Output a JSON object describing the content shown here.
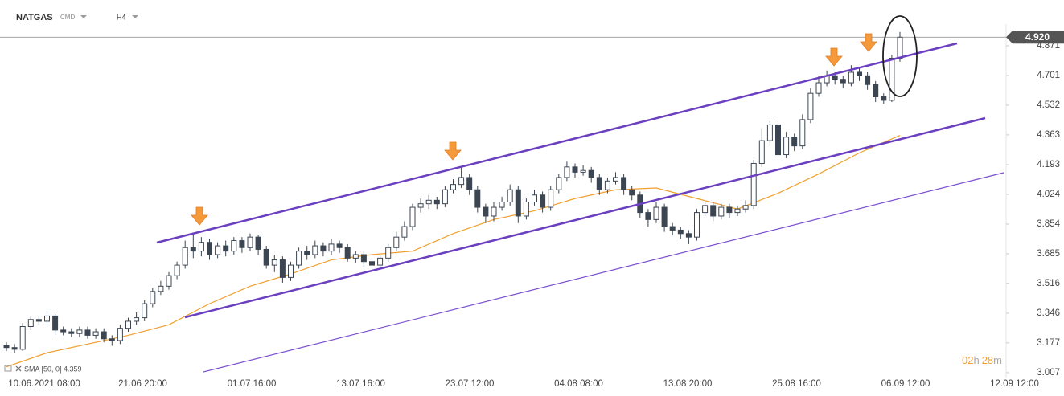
{
  "chart_data": {
    "type": "candlestick",
    "symbol": "NATGAS",
    "symbol_type": "CMD",
    "timeframe": "H4",
    "indicator_label": "SMA [50, 0] 4.359",
    "timer": {
      "hours": "02",
      "hours_unit": "h",
      "minutes": "28",
      "minutes_unit": "m"
    },
    "last_price": {
      "value": 4.92,
      "label": "4.920"
    },
    "up_color": "#ffffff",
    "down_color": "#3c4652",
    "sma_color": "#f0a030",
    "x_labels": [
      "10.06.2021 08:00",
      "21.06 20:00",
      "01.07 16:00",
      "13.07 16:00",
      "23.07 12:00",
      "04.08 08:00",
      "13.08 20:00",
      "25.08 16:00",
      "06.09 12:00",
      "12.09 12:00"
    ],
    "ylim": [
      2.915,
      4.958
    ],
    "yticks": [
      3.007,
      3.177,
      3.346,
      3.516,
      3.685,
      3.854,
      4.024,
      4.193,
      4.363,
      4.532,
      4.701,
      4.871
    ],
    "open": [
      3.16,
      3.15,
      3.14,
      3.27,
      3.31,
      3.3,
      3.33,
      3.25,
      3.24,
      3.23,
      3.25,
      3.22,
      3.24,
      3.2,
      3.19,
      3.26,
      3.3,
      3.32,
      3.4,
      3.47,
      3.5,
      3.56,
      3.62,
      3.72,
      3.7,
      3.75,
      3.68,
      3.73,
      3.7,
      3.76,
      3.72,
      3.78,
      3.71,
      3.62,
      3.65,
      3.55,
      3.62,
      3.7,
      3.68,
      3.73,
      3.7,
      3.74,
      3.72,
      3.66,
      3.68,
      3.64,
      3.62,
      3.66,
      3.72,
      3.78,
      3.84,
      3.95,
      3.97,
      3.99,
      3.97,
      4.05,
      4.08,
      4.12,
      4.05,
      3.95,
      3.9,
      3.95,
      3.98,
      4.05,
      3.9,
      3.98,
      4.02,
      3.95,
      4.05,
      4.12,
      4.18,
      4.15,
      4.16,
      4.12,
      4.05,
      4.1,
      4.12,
      4.05,
      4.02,
      3.92,
      3.88,
      3.95,
      3.84,
      3.82,
      3.8,
      3.78,
      3.92,
      3.96,
      3.9,
      3.95,
      3.92,
      3.94,
      3.96,
      4.2,
      4.33,
      4.42,
      4.25,
      4.35,
      4.3,
      4.45,
      4.6,
      4.66,
      4.7,
      4.68,
      4.66,
      4.72,
      4.7,
      4.65,
      4.58,
      4.56,
      4.8
    ],
    "high": [
      3.18,
      3.17,
      3.29,
      3.33,
      3.33,
      3.36,
      3.34,
      3.27,
      3.26,
      3.27,
      3.27,
      3.26,
      3.26,
      3.22,
      3.28,
      3.32,
      3.35,
      3.42,
      3.49,
      3.53,
      3.58,
      3.64,
      3.76,
      3.8,
      3.78,
      3.77,
      3.75,
      3.76,
      3.78,
      3.78,
      3.8,
      3.79,
      3.73,
      3.68,
      3.67,
      3.64,
      3.72,
      3.73,
      3.76,
      3.75,
      3.77,
      3.76,
      3.74,
      3.7,
      3.7,
      3.66,
      3.68,
      3.74,
      3.81,
      3.87,
      3.97,
      4.0,
      4.02,
      4.01,
      4.07,
      4.11,
      4.18,
      4.14,
      4.07,
      3.97,
      3.98,
      4.01,
      4.08,
      4.07,
      4.0,
      4.05,
      4.04,
      4.07,
      4.14,
      4.21,
      4.2,
      4.19,
      4.18,
      4.14,
      4.12,
      4.15,
      4.14,
      4.07,
      4.04,
      3.94,
      3.98,
      3.97,
      3.86,
      3.84,
      3.82,
      3.94,
      3.98,
      3.98,
      3.97,
      3.97,
      3.96,
      3.99,
      4.22,
      4.4,
      4.45,
      4.44,
      4.38,
      4.37,
      4.48,
      4.63,
      4.7,
      4.73,
      4.72,
      4.7,
      4.76,
      4.75,
      4.72,
      4.67,
      4.6,
      4.82,
      4.95
    ],
    "low": [
      3.13,
      3.12,
      3.13,
      3.25,
      3.28,
      3.28,
      3.22,
      3.22,
      3.21,
      3.21,
      3.2,
      3.2,
      3.18,
      3.16,
      3.17,
      3.24,
      3.28,
      3.3,
      3.38,
      3.45,
      3.48,
      3.54,
      3.6,
      3.66,
      3.67,
      3.65,
      3.66,
      3.67,
      3.68,
      3.69,
      3.7,
      3.68,
      3.6,
      3.58,
      3.52,
      3.53,
      3.6,
      3.65,
      3.66,
      3.67,
      3.68,
      3.69,
      3.64,
      3.63,
      3.61,
      3.59,
      3.6,
      3.64,
      3.7,
      3.76,
      3.82,
      3.92,
      3.94,
      3.94,
      3.95,
      4.03,
      4.06,
      4.02,
      3.92,
      3.86,
      3.87,
      3.93,
      3.96,
      3.86,
      3.88,
      3.96,
      3.92,
      3.93,
      4.03,
      4.1,
      4.12,
      4.13,
      4.09,
      4.02,
      4.03,
      4.08,
      4.02,
      3.99,
      3.89,
      3.84,
      3.86,
      3.81,
      3.79,
      3.77,
      3.74,
      3.76,
      3.9,
      3.87,
      3.88,
      3.89,
      3.9,
      3.92,
      3.94,
      4.18,
      4.3,
      4.22,
      4.23,
      4.27,
      4.28,
      4.43,
      4.58,
      4.64,
      4.65,
      4.63,
      4.64,
      4.67,
      4.62,
      4.55,
      4.54,
      4.55,
      4.78
    ],
    "close": [
      3.15,
      3.14,
      3.27,
      3.31,
      3.3,
      3.33,
      3.25,
      3.24,
      3.23,
      3.25,
      3.22,
      3.24,
      3.2,
      3.19,
      3.26,
      3.3,
      3.32,
      3.4,
      3.47,
      3.5,
      3.56,
      3.62,
      3.72,
      3.7,
      3.75,
      3.68,
      3.73,
      3.7,
      3.76,
      3.72,
      3.78,
      3.71,
      3.62,
      3.65,
      3.55,
      3.62,
      3.7,
      3.68,
      3.73,
      3.7,
      3.74,
      3.72,
      3.66,
      3.68,
      3.64,
      3.62,
      3.66,
      3.72,
      3.78,
      3.84,
      3.95,
      3.97,
      3.99,
      3.97,
      4.05,
      4.08,
      4.12,
      4.05,
      3.95,
      3.9,
      3.95,
      3.98,
      4.05,
      3.9,
      3.98,
      4.02,
      3.95,
      4.05,
      4.12,
      4.18,
      4.15,
      4.16,
      4.12,
      4.05,
      4.1,
      4.12,
      4.05,
      4.02,
      3.92,
      3.88,
      3.95,
      3.84,
      3.82,
      3.8,
      3.78,
      3.92,
      3.96,
      3.9,
      3.95,
      3.92,
      3.94,
      3.96,
      4.2,
      4.33,
      4.42,
      4.25,
      4.35,
      4.3,
      4.45,
      4.6,
      4.66,
      4.7,
      4.68,
      4.66,
      4.72,
      4.7,
      4.65,
      4.58,
      4.56,
      4.8,
      4.92
    ],
    "sma": [
      3.04,
      3.12,
      3.17,
      3.22,
      3.28,
      3.4,
      3.5,
      3.57,
      3.65,
      3.68,
      3.7,
      3.8,
      3.88,
      3.93,
      4.0,
      4.05,
      4.06,
      4.0,
      3.94,
      4.03,
      4.14,
      4.26,
      4.36
    ]
  }
}
